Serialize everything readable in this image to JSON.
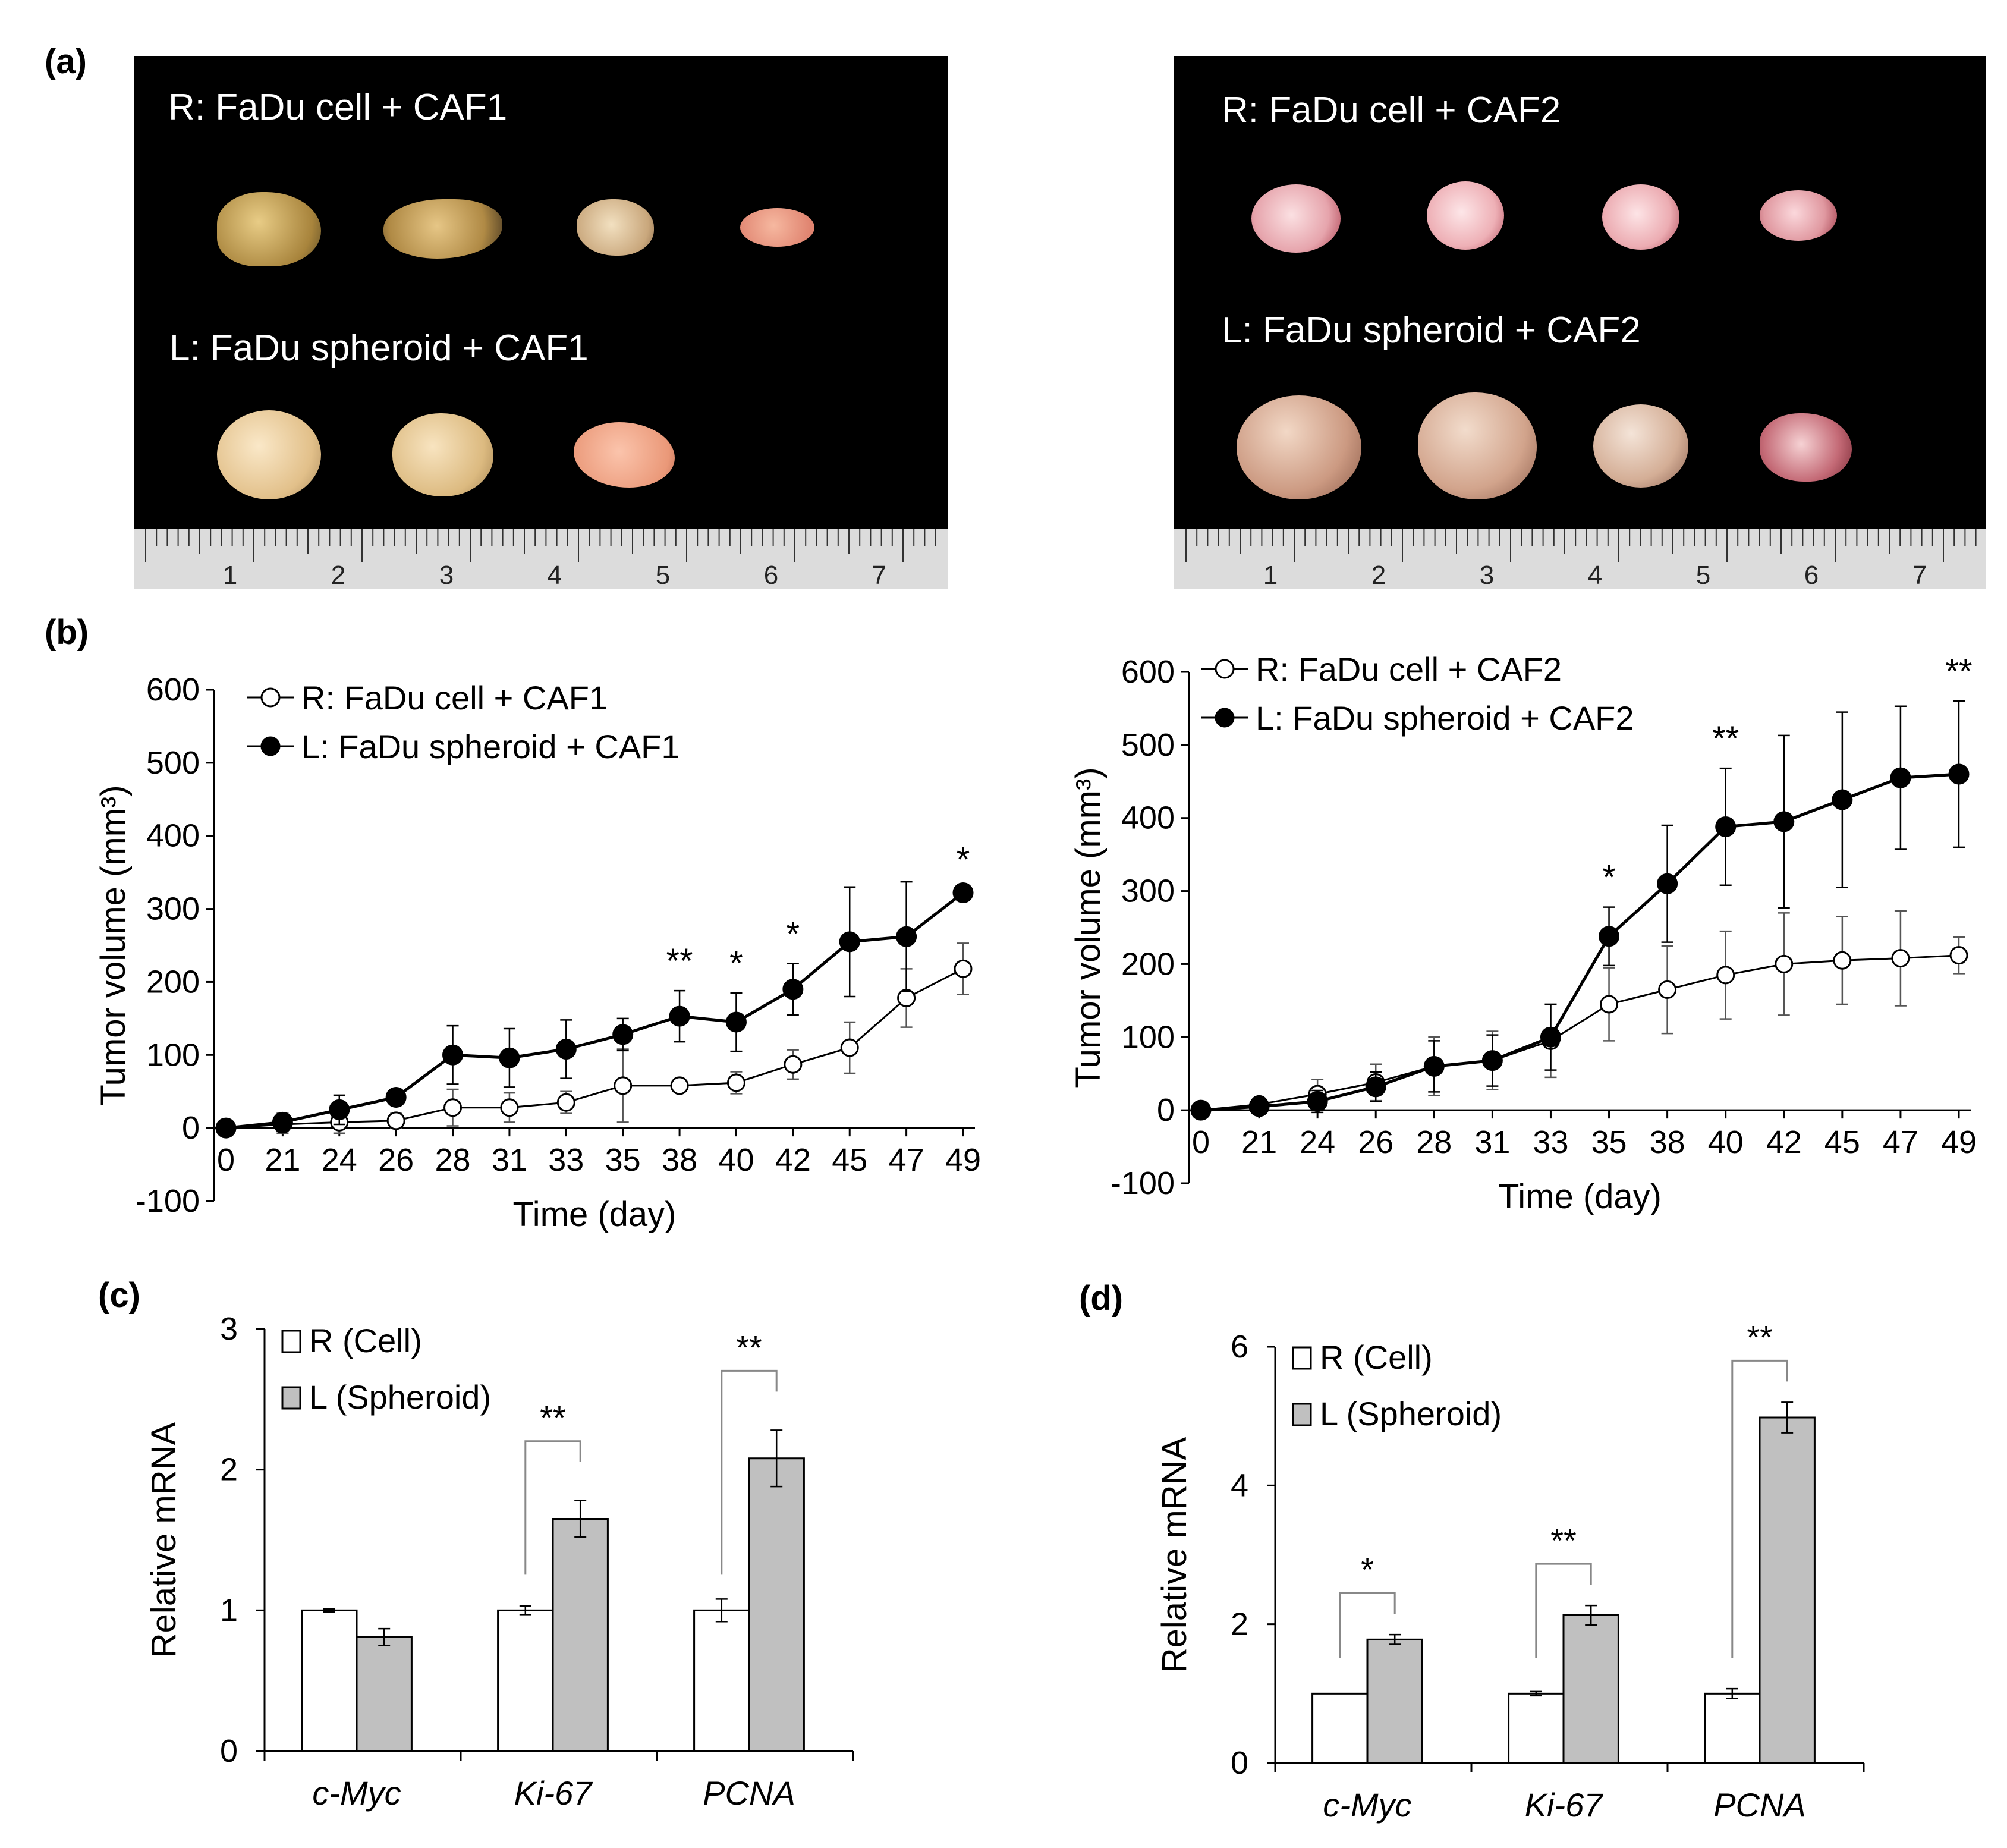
{
  "panels": {
    "a": "(a)",
    "b": "(b)",
    "c": "(c)",
    "d": "(d)"
  },
  "photos": [
    {
      "caption_top": "R: FaDu cell + CAF1",
      "caption_bottom": "L: FaDu spheroid + CAF1",
      "ruler_labels": [
        "1",
        "2",
        "3",
        "4",
        "5",
        "6",
        "7"
      ],
      "top_color": "#c8a55a",
      "bottom_color": "#e8c48a"
    },
    {
      "caption_top": "R: FaDu cell + CAF2",
      "caption_bottom": "L: FaDu spheroid + CAF2",
      "ruler_labels": [
        "1",
        "2",
        "3",
        "4",
        "5",
        "6",
        "7"
      ],
      "top_color": "#e8a8ae",
      "bottom_color": "#c89a88"
    }
  ],
  "chart_data": [
    {
      "id": "b-left",
      "type": "line",
      "x": [
        "0",
        "21",
        "24",
        "26",
        "28",
        "31",
        "33",
        "35",
        "38",
        "40",
        "42",
        "45",
        "47",
        "49"
      ],
      "ylabel": "Tumor volume (mm³)",
      "xlabel": "Time (day)",
      "ylim": [
        -100,
        600
      ],
      "yticks": [
        "-100",
        "0",
        "100",
        "200",
        "300",
        "400",
        "500",
        "600"
      ],
      "series": [
        {
          "name": "R: FaDu cell + CAF1",
          "marker": "open",
          "values": [
            0,
            5,
            8,
            10,
            28,
            28,
            35,
            58,
            58,
            62,
            87,
            110,
            178,
            218
          ],
          "errors": [
            5,
            12,
            15,
            10,
            25,
            20,
            15,
            50,
            8,
            15,
            20,
            35,
            40,
            35
          ]
        },
        {
          "name": "L: FaDu spheroid + CAF1",
          "marker": "filled",
          "values": [
            0,
            8,
            25,
            42,
            100,
            96,
            108,
            128,
            153,
            145,
            190,
            255,
            262,
            322
          ],
          "errors": [
            5,
            12,
            20,
            10,
            40,
            40,
            40,
            22,
            35,
            40,
            35,
            75,
            75,
            5
          ]
        }
      ],
      "annotations": [
        {
          "x": "38",
          "text": "**"
        },
        {
          "x": "40",
          "text": "*"
        },
        {
          "x": "42",
          "text": "*"
        },
        {
          "x": "49",
          "text": "*"
        }
      ]
    },
    {
      "id": "b-right",
      "type": "line",
      "x": [
        "0",
        "21",
        "24",
        "26",
        "28",
        "31",
        "33",
        "35",
        "38",
        "40",
        "42",
        "45",
        "47",
        "49"
      ],
      "ylabel": "Tumor volume (mm³)",
      "xlabel": "Time (day)",
      "ylim": [
        -100,
        600
      ],
      "yticks": [
        "-100",
        "0",
        "100",
        "200",
        "300",
        "400",
        "500",
        "600"
      ],
      "series": [
        {
          "name": "R: FaDu cell + CAF2",
          "marker": "open",
          "values": [
            0,
            8,
            22,
            38,
            60,
            68,
            95,
            145,
            165,
            185,
            200,
            205,
            208,
            212
          ],
          "errors": [
            5,
            8,
            20,
            25,
            40,
            40,
            50,
            50,
            60,
            60,
            70,
            60,
            65,
            25
          ]
        },
        {
          "name": "L: FaDu spheroid + CAF2",
          "marker": "filled",
          "values": [
            0,
            5,
            12,
            32,
            60,
            68,
            100,
            238,
            310,
            388,
            395,
            425,
            455,
            460
          ],
          "errors": [
            5,
            8,
            15,
            20,
            35,
            35,
            45,
            40,
            80,
            80,
            118,
            120,
            98,
            100
          ]
        }
      ],
      "annotations": [
        {
          "x": "35",
          "text": "*"
        },
        {
          "x": "40",
          "text": "**"
        },
        {
          "x": "49",
          "text": "**"
        }
      ]
    },
    {
      "id": "c",
      "type": "bar",
      "categories": [
        "c-Myc",
        "Ki-67",
        "PCNA"
      ],
      "ylabel": "Relative mRNA",
      "ylim": [
        0,
        3
      ],
      "yticks": [
        "0",
        "1",
        "2",
        "3"
      ],
      "series": [
        {
          "name": "R (Cell)",
          "color": "#ffffff",
          "values": [
            1.0,
            1.0,
            1.0
          ],
          "errors": [
            0.01,
            0.03,
            0.08
          ]
        },
        {
          "name": "L (Spheroid)",
          "color": "#c0c0c0",
          "values": [
            0.81,
            1.65,
            2.08
          ],
          "errors": [
            0.06,
            0.13,
            0.2
          ]
        }
      ],
      "annotations": [
        {
          "category": "Ki-67",
          "text": "**"
        },
        {
          "category": "PCNA",
          "text": "**"
        }
      ]
    },
    {
      "id": "d",
      "type": "bar",
      "categories": [
        "c-Myc",
        "Ki-67",
        "PCNA"
      ],
      "ylabel": "Relative mRNA",
      "ylim": [
        0,
        6
      ],
      "yticks": [
        "0",
        "2",
        "4",
        "6"
      ],
      "series": [
        {
          "name": "R (Cell)",
          "color": "#ffffff",
          "values": [
            1.0,
            1.0,
            1.0
          ],
          "errors": [
            0.0,
            0.03,
            0.07
          ]
        },
        {
          "name": "L (Spheroid)",
          "color": "#c0c0c0",
          "values": [
            1.78,
            2.13,
            4.98
          ],
          "errors": [
            0.07,
            0.14,
            0.22
          ]
        }
      ],
      "annotations": [
        {
          "category": "c-Myc",
          "text": "*"
        },
        {
          "category": "Ki-67",
          "text": "**"
        },
        {
          "category": "PCNA",
          "text": "**"
        }
      ]
    }
  ]
}
